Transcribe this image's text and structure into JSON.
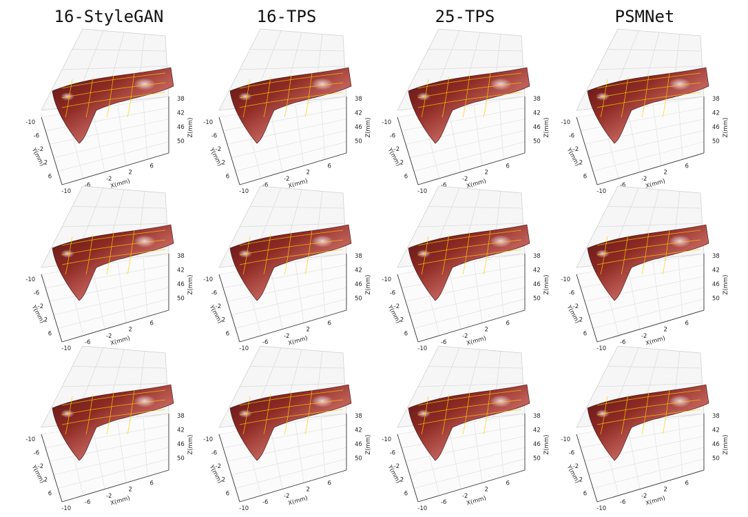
{
  "figure": {
    "column_titles": [
      "16-StyleGAN",
      "16-TPS",
      "25-TPS",
      "PSMNet"
    ]
  },
  "chart_data": {
    "type": "surface3d",
    "rows": 3,
    "columns": [
      "16-StyleGAN",
      "16-TPS",
      "25-TPS",
      "PSMNet"
    ],
    "xlabel": "X(mm)",
    "ylabel": "Y(mm)",
    "zlabel": "Z(mm)",
    "x_ticks": [
      "-10",
      "-6",
      "-2",
      "2",
      "6"
    ],
    "y_ticks": [
      "-10",
      "-6",
      "-2",
      "2",
      "6"
    ],
    "z_ticks": [
      "38",
      "42",
      "46",
      "50"
    ],
    "xlim": [
      -10,
      8
    ],
    "ylim": [
      -10,
      8
    ],
    "zlim": [
      38,
      50
    ],
    "z_axis_inverted": true,
    "grid": true,
    "surface_colors": {
      "tissue_dark": "#5a1414",
      "tissue_mid": "#8e2a24",
      "tissue_light": "#c06058",
      "highlight": "#f2dce0",
      "contour": "#ffcc00"
    }
  }
}
